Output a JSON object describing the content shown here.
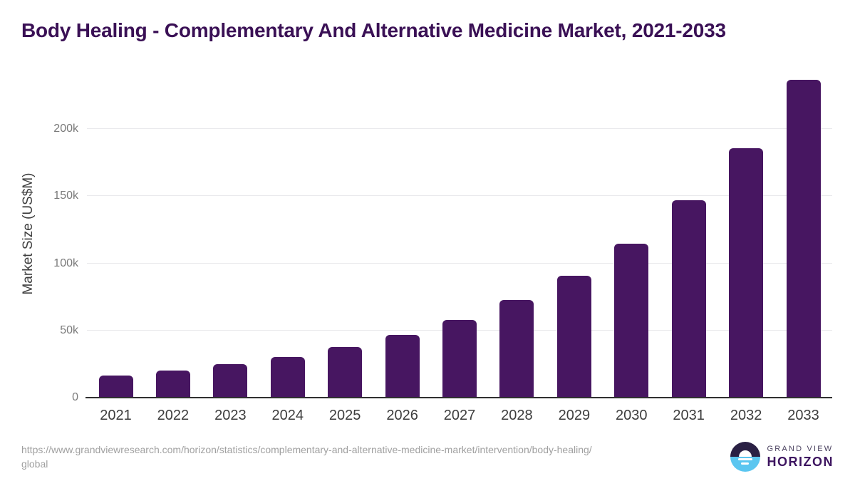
{
  "title": "Body Healing - Complementary And Alternative Medicine Market, 2021-2033",
  "chart_data": {
    "type": "bar",
    "title": "Body Healing - Complementary And Alternative Medicine Market, 2021-2033",
    "categories": [
      "2021",
      "2022",
      "2023",
      "2024",
      "2025",
      "2026",
      "2027",
      "2028",
      "2029",
      "2030",
      "2031",
      "2032",
      "2033"
    ],
    "values": [
      16400,
      20300,
      24700,
      30200,
      37500,
      46600,
      57900,
      72700,
      91000,
      114800,
      147300,
      186000,
      236800
    ],
    "xlabel": "",
    "ylabel": "Market Size (US$M)",
    "ylim": [
      0,
      244200
    ],
    "ytick_values": [
      0,
      50000,
      100000,
      150000,
      200000
    ],
    "ytick_labels": [
      "0",
      "50k",
      "100k",
      "150k",
      "200k"
    ],
    "grid": true,
    "legend": false,
    "bar_color": "#471661"
  },
  "footer": {
    "source_url_line1": "https://www.grandviewresearch.com/horizon/statistics/complementary-and-alternative-medicine-market/intervention/body-healing/",
    "source_url_line2": "global",
    "logo_top": "GRAND VIEW",
    "logo_bottom": "HORIZON"
  },
  "colors": {
    "title_text": "#3a1055",
    "bar": "#471661",
    "axis_line": "#303030",
    "gridline": "#e9e9ec",
    "ytick_text": "#7a7a7a",
    "xtick_text": "#3d3d3d",
    "url_text": "#a0a0a0",
    "logo_dark": "#2a2044",
    "logo_blue": "#5bc6f0"
  }
}
